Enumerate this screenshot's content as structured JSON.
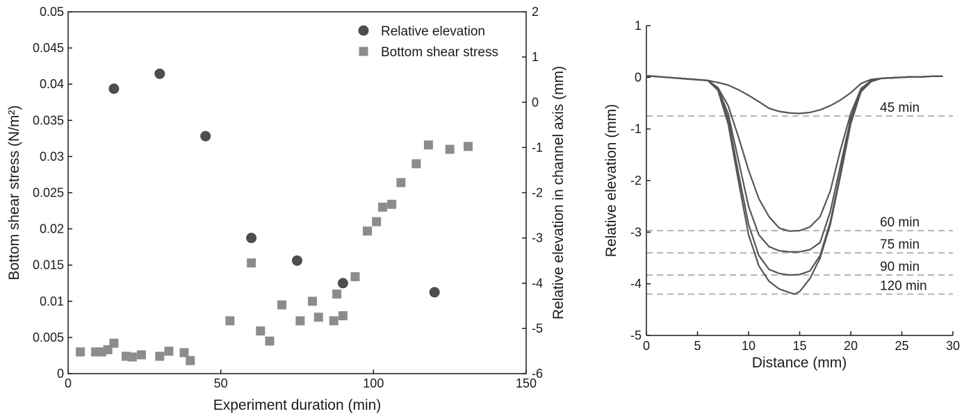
{
  "chart_data": [
    {
      "type": "scatter",
      "xlabel": "Experiment duration (min)",
      "ylabel": "Bottom shear stress (N/m²)",
      "y2label": "Relative elevation in channel axis (mm)",
      "xlim": [
        0,
        150
      ],
      "ylim": [
        0,
        0.05
      ],
      "y2lim": [
        -6,
        2
      ],
      "xticks": [
        0,
        50,
        100,
        150
      ],
      "yticks": [
        0,
        0.005,
        0.01,
        0.015,
        0.02,
        0.025,
        0.03,
        0.035,
        0.04,
        0.045,
        0.05
      ],
      "ytick_labels": [
        "0",
        "0.005",
        "0.01",
        "0.015",
        "0.02",
        "0.025",
        "0.03",
        "0.035",
        "0.04",
        "0.045",
        "0.05"
      ],
      "y2ticks": [
        -6,
        -5,
        -4,
        -3,
        -2,
        -1,
        0,
        1,
        2
      ],
      "grid": false,
      "legend_position": "top-right",
      "series": [
        {
          "name": "Relative elevation",
          "axis": "right",
          "marker": "circle",
          "color": "#4d4d4d",
          "x": [
            15,
            30,
            45,
            60,
            75,
            90,
            120
          ],
          "y": [
            0.3,
            0.63,
            -0.75,
            -3.0,
            -3.5,
            -4.0,
            -4.2
          ]
        },
        {
          "name": "Bottom shear stress",
          "axis": "left",
          "marker": "square",
          "color": "#8c8c8c",
          "x": [
            4,
            9,
            11,
            13,
            15,
            19,
            21,
            24,
            30,
            33,
            38,
            40,
            53,
            60,
            63,
            66,
            70,
            76,
            80,
            82,
            87,
            88,
            90,
            94,
            98,
            101,
            103,
            106,
            109,
            114,
            118,
            125,
            131
          ],
          "y": [
            0.003,
            0.003,
            0.003,
            0.0033,
            0.0042,
            0.0024,
            0.0023,
            0.0026,
            0.0024,
            0.0031,
            0.0029,
            0.0018,
            0.0073,
            0.0153,
            0.0059,
            0.0045,
            0.0095,
            0.0073,
            0.01,
            0.0078,
            0.0073,
            0.011,
            0.008,
            0.0134,
            0.0197,
            0.021,
            0.023,
            0.0234,
            0.0264,
            0.029,
            0.0316,
            0.031,
            0.0314
          ]
        }
      ]
    },
    {
      "type": "line",
      "xlabel": "Distance (mm)",
      "ylabel": "Relative elevation (mm)",
      "xlim": [
        0,
        30
      ],
      "ylim": [
        -5,
        1
      ],
      "xticks": [
        0,
        5,
        10,
        15,
        20,
        25,
        30
      ],
      "yticks": [
        -5,
        -4,
        -3,
        -2,
        -1,
        0,
        1
      ],
      "grid": false,
      "line_color": "#555555",
      "reference_color": "#b3b3b3",
      "profiles": [
        {
          "label": "45 min",
          "level": -0.75,
          "x": [
            0,
            2,
            4,
            6,
            7,
            8,
            9,
            10,
            11,
            12,
            13,
            14,
            15,
            16,
            17,
            18,
            19,
            20,
            21,
            22,
            23,
            24,
            25,
            26,
            27,
            28,
            29
          ],
          "y": [
            0.03,
            0,
            -0.03,
            -0.06,
            -0.1,
            -0.15,
            -0.24,
            -0.35,
            -0.47,
            -0.6,
            -0.66,
            -0.69,
            -0.7,
            -0.68,
            -0.63,
            -0.55,
            -0.44,
            -0.3,
            -0.12,
            -0.04,
            -0.02,
            -0.01,
            0,
            0.01,
            0.01,
            0.02,
            0.02
          ]
        },
        {
          "label": "60 min",
          "level": -2.97,
          "x": [
            0,
            2,
            4,
            6,
            7,
            8,
            9,
            10,
            11,
            12,
            13,
            14,
            15,
            16,
            17,
            18,
            19,
            20,
            21,
            22,
            23,
            24,
            25,
            26,
            27,
            28,
            29
          ],
          "y": [
            0.03,
            0,
            -0.03,
            -0.06,
            -0.2,
            -0.55,
            -1.15,
            -1.8,
            -2.35,
            -2.7,
            -2.92,
            -2.98,
            -2.97,
            -2.9,
            -2.7,
            -2.2,
            -1.4,
            -0.7,
            -0.22,
            -0.06,
            -0.02,
            -0.01,
            0,
            0.01,
            0.01,
            0.02,
            0.02
          ]
        },
        {
          "label": "75 min",
          "level": -3.4,
          "x": [
            0,
            2,
            4,
            6,
            7,
            8,
            9,
            10,
            11,
            12,
            13,
            14,
            15,
            16,
            17,
            18,
            19,
            20,
            21,
            22,
            23,
            24,
            25,
            26,
            27,
            28,
            29
          ],
          "y": [
            0.03,
            0,
            -0.03,
            -0.06,
            -0.22,
            -0.7,
            -1.6,
            -2.5,
            -3.05,
            -3.28,
            -3.36,
            -3.38,
            -3.38,
            -3.34,
            -3.2,
            -2.6,
            -1.7,
            -0.8,
            -0.25,
            -0.07,
            -0.02,
            -0.01,
            0,
            0.01,
            0.01,
            0.02,
            0.02
          ]
        },
        {
          "label": "90 min",
          "level": -3.83,
          "x": [
            0,
            2,
            4,
            6,
            7,
            8,
            9,
            10,
            11,
            12,
            13,
            14,
            15,
            16,
            17,
            18,
            19,
            20,
            21,
            22,
            23,
            24,
            25,
            26,
            27,
            28,
            29
          ],
          "y": [
            0.03,
            0,
            -0.03,
            -0.06,
            -0.24,
            -0.8,
            -1.85,
            -2.85,
            -3.45,
            -3.72,
            -3.8,
            -3.83,
            -3.82,
            -3.75,
            -3.45,
            -2.8,
            -1.85,
            -0.85,
            -0.27,
            -0.08,
            -0.02,
            -0.01,
            0,
            0.01,
            0.01,
            0.02,
            0.02
          ]
        },
        {
          "label": "120 min",
          "level": -4.2,
          "x": [
            0,
            2,
            4,
            6,
            7,
            8,
            9,
            10,
            11,
            12,
            13,
            14,
            14.5,
            15,
            16,
            17,
            18,
            19,
            20,
            21,
            22,
            23,
            24,
            25,
            26,
            27,
            28,
            29
          ],
          "y": [
            0.03,
            0,
            -0.03,
            -0.06,
            -0.25,
            -0.9,
            -2.0,
            -3.05,
            -3.65,
            -3.95,
            -4.1,
            -4.17,
            -4.2,
            -4.15,
            -3.9,
            -3.5,
            -2.85,
            -1.9,
            -0.9,
            -0.28,
            -0.08,
            -0.02,
            -0.01,
            0,
            0.01,
            0.01,
            0.02,
            0.02
          ]
        }
      ]
    }
  ]
}
